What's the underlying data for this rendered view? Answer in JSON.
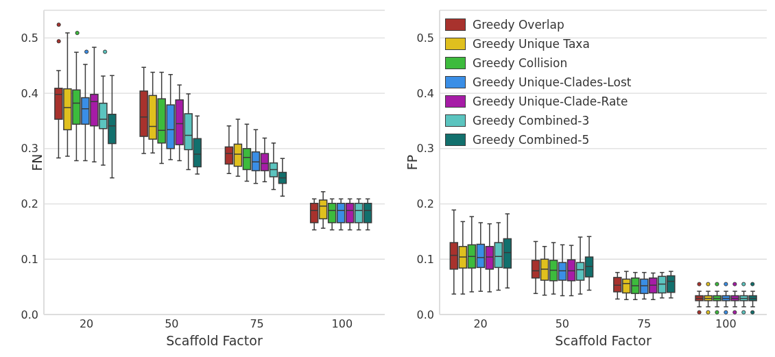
{
  "chart_data": [
    {
      "type": "box",
      "xlabel": "Scaffold Factor",
      "ylabel": "FN",
      "categories": [
        "20",
        "50",
        "75",
        "100"
      ],
      "ylim": [
        0,
        0.55
      ],
      "yticks": [
        {
          "value": 0,
          "label": "0.0"
        },
        {
          "value": 0.1,
          "label": "0.1"
        },
        {
          "value": 0.2,
          "label": "0.2"
        },
        {
          "value": 0.3,
          "label": "0.3"
        },
        {
          "value": 0.4,
          "label": "0.4"
        },
        {
          "value": 0.5,
          "label": "0.5"
        }
      ],
      "grid": "y",
      "legend": false,
      "series": [
        {
          "color": "#a8322d",
          "boxes": [
            {
              "low": 0.283,
              "q1": 0.353,
              "median": 0.398,
              "q3": 0.409,
              "high": 0.441,
              "outliers": [
                0.524,
                0.494
              ]
            },
            {
              "low": 0.291,
              "q1": 0.322,
              "median": 0.357,
              "q3": 0.404,
              "high": 0.447
            },
            {
              "low": 0.255,
              "q1": 0.272,
              "median": 0.291,
              "q3": 0.303,
              "high": 0.341
            },
            {
              "low": 0.153,
              "q1": 0.166,
              "median": 0.188,
              "q3": 0.201,
              "high": 0.209
            }
          ]
        },
        {
          "color": "#e0c01e",
          "boxes": [
            {
              "low": 0.286,
              "q1": 0.334,
              "median": 0.374,
              "q3": 0.408,
              "high": 0.509
            },
            {
              "low": 0.292,
              "q1": 0.317,
              "median": 0.34,
              "q3": 0.396,
              "high": 0.438
            },
            {
              "low": 0.25,
              "q1": 0.268,
              "median": 0.29,
              "q3": 0.308,
              "high": 0.353
            },
            {
              "low": 0.156,
              "q1": 0.173,
              "median": 0.196,
              "q3": 0.207,
              "high": 0.222
            }
          ]
        },
        {
          "color": "#3dbb3d",
          "boxes": [
            {
              "low": 0.278,
              "q1": 0.344,
              "median": 0.382,
              "q3": 0.406,
              "high": 0.474,
              "outliers": [
                0.509
              ]
            },
            {
              "low": 0.273,
              "q1": 0.31,
              "median": 0.333,
              "q3": 0.39,
              "high": 0.438
            },
            {
              "low": 0.241,
              "q1": 0.262,
              "median": 0.284,
              "q3": 0.3,
              "high": 0.344
            },
            {
              "low": 0.153,
              "q1": 0.166,
              "median": 0.188,
              "q3": 0.201,
              "high": 0.209
            }
          ]
        },
        {
          "color": "#3a8ee6",
          "boxes": [
            {
              "low": 0.278,
              "q1": 0.344,
              "median": 0.372,
              "q3": 0.392,
              "high": 0.452,
              "outliers": [
                0.475
              ]
            },
            {
              "low": 0.28,
              "q1": 0.3,
              "median": 0.334,
              "q3": 0.379,
              "high": 0.434
            },
            {
              "low": 0.237,
              "q1": 0.26,
              "median": 0.276,
              "q3": 0.294,
              "high": 0.334
            },
            {
              "low": 0.153,
              "q1": 0.166,
              "median": 0.188,
              "q3": 0.201,
              "high": 0.209
            }
          ]
        },
        {
          "color": "#a61ca6",
          "boxes": [
            {
              "low": 0.276,
              "q1": 0.341,
              "median": 0.385,
              "q3": 0.398,
              "high": 0.483
            },
            {
              "low": 0.278,
              "q1": 0.307,
              "median": 0.345,
              "q3": 0.388,
              "high": 0.415
            },
            {
              "low": 0.24,
              "q1": 0.26,
              "median": 0.273,
              "q3": 0.291,
              "high": 0.319
            },
            {
              "low": 0.153,
              "q1": 0.166,
              "median": 0.188,
              "q3": 0.201,
              "high": 0.209
            }
          ]
        },
        {
          "color": "#5bc4bf",
          "boxes": [
            {
              "low": 0.27,
              "q1": 0.336,
              "median": 0.353,
              "q3": 0.382,
              "high": 0.431,
              "outliers": [
                0.475
              ]
            },
            {
              "low": 0.262,
              "q1": 0.298,
              "median": 0.324,
              "q3": 0.363,
              "high": 0.399
            },
            {
              "low": 0.226,
              "q1": 0.249,
              "median": 0.262,
              "q3": 0.274,
              "high": 0.31
            },
            {
              "low": 0.153,
              "q1": 0.166,
              "median": 0.188,
              "q3": 0.201,
              "high": 0.209
            }
          ]
        },
        {
          "color": "#12706d",
          "boxes": [
            {
              "low": 0.247,
              "q1": 0.309,
              "median": 0.341,
              "q3": 0.362,
              "high": 0.432
            },
            {
              "low": 0.254,
              "q1": 0.267,
              "median": 0.29,
              "q3": 0.318,
              "high": 0.359
            },
            {
              "low": 0.214,
              "q1": 0.237,
              "median": 0.247,
              "q3": 0.257,
              "high": 0.282
            },
            {
              "low": 0.153,
              "q1": 0.166,
              "median": 0.188,
              "q3": 0.201,
              "high": 0.209
            }
          ]
        }
      ]
    },
    {
      "type": "box",
      "xlabel": "Scaffold Factor",
      "ylabel": "FP",
      "categories": [
        "20",
        "50",
        "75",
        "100"
      ],
      "ylim": [
        0,
        0.55
      ],
      "yticks": [
        {
          "value": 0,
          "label": "0.0"
        },
        {
          "value": 0.1,
          "label": "0.1"
        },
        {
          "value": 0.2,
          "label": "0.2"
        },
        {
          "value": 0.3,
          "label": "0.3"
        },
        {
          "value": 0.4,
          "label": "0.4"
        },
        {
          "value": 0.5,
          "label": "0.5"
        }
      ],
      "grid": "y",
      "legend": "top left",
      "series": [
        {
          "name": "Greedy Overlap",
          "color": "#a8322d",
          "boxes": [
            {
              "low": 0.037,
              "q1": 0.082,
              "median": 0.107,
              "q3": 0.13,
              "high": 0.189
            },
            {
              "low": 0.038,
              "q1": 0.066,
              "median": 0.079,
              "q3": 0.098,
              "high": 0.132
            },
            {
              "low": 0.028,
              "q1": 0.041,
              "median": 0.053,
              "q3": 0.067,
              "high": 0.076
            },
            {
              "low": 0.014,
              "q1": 0.025,
              "median": 0.029,
              "q3": 0.034,
              "high": 0.042,
              "outliers": [
                0.004,
                0.055
              ]
            }
          ]
        },
        {
          "name": "Greedy Unique Taxa",
          "color": "#e0c01e",
          "boxes": [
            {
              "low": 0.037,
              "q1": 0.084,
              "median": 0.104,
              "q3": 0.123,
              "high": 0.168
            },
            {
              "low": 0.035,
              "q1": 0.062,
              "median": 0.082,
              "q3": 0.1,
              "high": 0.123
            },
            {
              "low": 0.027,
              "q1": 0.039,
              "median": 0.056,
              "q3": 0.064,
              "high": 0.078
            },
            {
              "low": 0.014,
              "q1": 0.025,
              "median": 0.029,
              "q3": 0.034,
              "high": 0.042,
              "outliers": [
                0.004,
                0.055
              ]
            }
          ]
        },
        {
          "name": "Greedy Collision",
          "color": "#3dbb3d",
          "boxes": [
            {
              "low": 0.041,
              "q1": 0.084,
              "median": 0.105,
              "q3": 0.126,
              "high": 0.177
            },
            {
              "low": 0.037,
              "q1": 0.061,
              "median": 0.08,
              "q3": 0.098,
              "high": 0.13
            },
            {
              "low": 0.027,
              "q1": 0.038,
              "median": 0.052,
              "q3": 0.066,
              "high": 0.076
            },
            {
              "low": 0.014,
              "q1": 0.025,
              "median": 0.029,
              "q3": 0.034,
              "high": 0.042,
              "outliers": [
                0.004,
                0.055
              ]
            }
          ]
        },
        {
          "name": "Greedy Unique-Clades-Lost",
          "color": "#3a8ee6",
          "boxes": [
            {
              "low": 0.042,
              "q1": 0.085,
              "median": 0.103,
              "q3": 0.127,
              "high": 0.166
            },
            {
              "low": 0.034,
              "q1": 0.062,
              "median": 0.079,
              "q3": 0.094,
              "high": 0.126
            },
            {
              "low": 0.028,
              "q1": 0.038,
              "median": 0.052,
              "q3": 0.064,
              "high": 0.076
            },
            {
              "low": 0.014,
              "q1": 0.025,
              "median": 0.029,
              "q3": 0.034,
              "high": 0.042,
              "outliers": [
                0.004,
                0.055
              ]
            }
          ]
        },
        {
          "name": "Greedy Unique-Clade-Rate",
          "color": "#a61ca6",
          "boxes": [
            {
              "low": 0.041,
              "q1": 0.082,
              "median": 0.104,
              "q3": 0.123,
              "high": 0.164
            },
            {
              "low": 0.034,
              "q1": 0.061,
              "median": 0.079,
              "q3": 0.099,
              "high": 0.125
            },
            {
              "low": 0.027,
              "q1": 0.039,
              "median": 0.053,
              "q3": 0.066,
              "high": 0.075
            },
            {
              "low": 0.014,
              "q1": 0.025,
              "median": 0.029,
              "q3": 0.034,
              "high": 0.042,
              "outliers": [
                0.004,
                0.055
              ]
            }
          ]
        },
        {
          "name": "Greedy Combined-3",
          "color": "#5bc4bf",
          "boxes": [
            {
              "low": 0.044,
              "q1": 0.085,
              "median": 0.105,
              "q3": 0.13,
              "high": 0.166
            },
            {
              "low": 0.037,
              "q1": 0.062,
              "median": 0.081,
              "q3": 0.094,
              "high": 0.14
            },
            {
              "low": 0.03,
              "q1": 0.039,
              "median": 0.055,
              "q3": 0.069,
              "high": 0.076
            },
            {
              "low": 0.014,
              "q1": 0.025,
              "median": 0.029,
              "q3": 0.034,
              "high": 0.042,
              "outliers": [
                0.004,
                0.055
              ]
            }
          ]
        },
        {
          "name": "Greedy Combined-5",
          "color": "#12706d",
          "boxes": [
            {
              "low": 0.048,
              "q1": 0.084,
              "median": 0.112,
              "q3": 0.137,
              "high": 0.182
            },
            {
              "low": 0.044,
              "q1": 0.068,
              "median": 0.087,
              "q3": 0.104,
              "high": 0.141
            },
            {
              "low": 0.03,
              "q1": 0.04,
              "median": 0.06,
              "q3": 0.07,
              "high": 0.078
            },
            {
              "low": 0.014,
              "q1": 0.025,
              "median": 0.029,
              "q3": 0.034,
              "high": 0.042,
              "outliers": [
                0.004,
                0.055
              ]
            }
          ]
        }
      ]
    }
  ]
}
